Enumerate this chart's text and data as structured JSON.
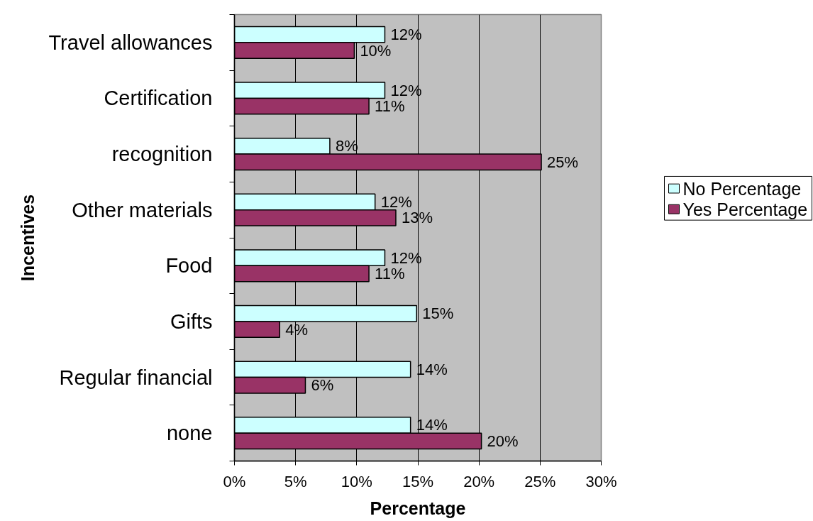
{
  "chart_data": {
    "type": "bar",
    "orientation": "horizontal",
    "xlabel": "Percentage",
    "ylabel": "Incentives",
    "categories": [
      "Travel allowances",
      "Certification",
      "recognition",
      "Other materials",
      "Food",
      "Gifts",
      "Regular financial",
      "none"
    ],
    "series": [
      {
        "name": "No Percentage",
        "color": "#ccffff",
        "values": [
          12.3,
          12.3,
          7.8,
          11.5,
          12.3,
          14.9,
          14.4,
          14.4
        ],
        "value_labels": [
          "12%",
          "12%",
          "8%",
          "12%",
          "12%",
          "15%",
          "14%",
          "14%"
        ]
      },
      {
        "name": "Yes Percentage",
        "color": "#993366",
        "values": [
          9.8,
          11.0,
          25.1,
          13.2,
          11.0,
          3.7,
          5.8,
          20.2
        ],
        "value_labels": [
          "10%",
          "11%",
          "25%",
          "13%",
          "11%",
          "4%",
          "6%",
          "20%"
        ]
      }
    ],
    "xlim": [
      0,
      30
    ],
    "xticks": [
      {
        "value": 0,
        "label": "0%"
      },
      {
        "value": 5,
        "label": "5%"
      },
      {
        "value": 10,
        "label": "10%"
      },
      {
        "value": 15,
        "label": "15%"
      },
      {
        "value": 20,
        "label": "20%"
      },
      {
        "value": 25,
        "label": "25%"
      },
      {
        "value": 30,
        "label": "30%"
      }
    ],
    "grid": "x",
    "legend": "right"
  }
}
